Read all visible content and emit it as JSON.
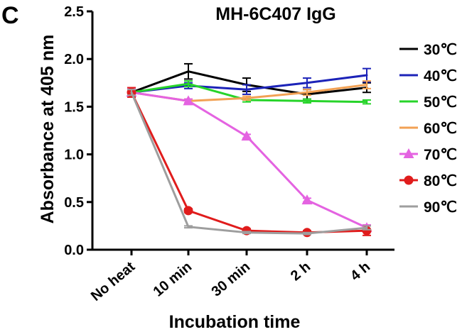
{
  "panel_letter": "C",
  "chart_data": {
    "type": "line",
    "title": "MH-6C407 IgG",
    "xlabel": "Incubation time",
    "ylabel": "Absorbance at 405 nm",
    "categories": [
      "No heat",
      "10 min",
      "30 min",
      "2 h",
      "4 h"
    ],
    "ylim": [
      0,
      2.5
    ],
    "yticks": [
      "0.0",
      "0.5",
      "1.0",
      "1.5",
      "2.0",
      "2.5"
    ],
    "legend_position": "right",
    "grid": false,
    "series": [
      {
        "name": "30℃",
        "color": "#000000",
        "marker": "none",
        "values": [
          1.65,
          1.87,
          1.73,
          1.63,
          1.7
        ],
        "errors": [
          0.04,
          0.08,
          0.07,
          0.05,
          0.05
        ]
      },
      {
        "name": "40℃",
        "color": "#1c23b8",
        "marker": "none",
        "values": [
          1.65,
          1.72,
          1.68,
          1.75,
          1.83
        ],
        "errors": [
          0.04,
          0.03,
          0.05,
          0.05,
          0.07
        ]
      },
      {
        "name": "50℃",
        "color": "#27d42a",
        "marker": "none",
        "values": [
          1.65,
          1.74,
          1.57,
          1.56,
          1.55
        ],
        "errors": [
          0.03,
          0.03,
          0.02,
          0.02,
          0.02
        ]
      },
      {
        "name": "60℃",
        "color": "#f2a154",
        "marker": "none",
        "values": [
          1.65,
          1.56,
          1.59,
          1.65,
          1.73
        ],
        "errors": [
          0.03,
          0.02,
          0.02,
          0.03,
          0.04
        ]
      },
      {
        "name": "70℃",
        "color": "#e463e1",
        "marker": "triangle",
        "values": [
          1.65,
          1.56,
          1.19,
          0.52,
          0.23
        ],
        "errors": [
          0.04,
          0.02,
          0.02,
          0.02,
          0.03
        ]
      },
      {
        "name": "80℃",
        "color": "#e01c1c",
        "marker": "circle",
        "values": [
          1.65,
          0.41,
          0.2,
          0.18,
          0.2
        ],
        "errors": [
          0.05,
          0.02,
          0.02,
          0.02,
          0.05
        ]
      },
      {
        "name": "90℃",
        "color": "#9e9e9e",
        "marker": "none",
        "values": [
          1.65,
          0.24,
          0.18,
          0.17,
          0.23
        ],
        "errors": [
          0.03,
          0.01,
          0.01,
          0.01,
          0.02
        ]
      }
    ]
  }
}
